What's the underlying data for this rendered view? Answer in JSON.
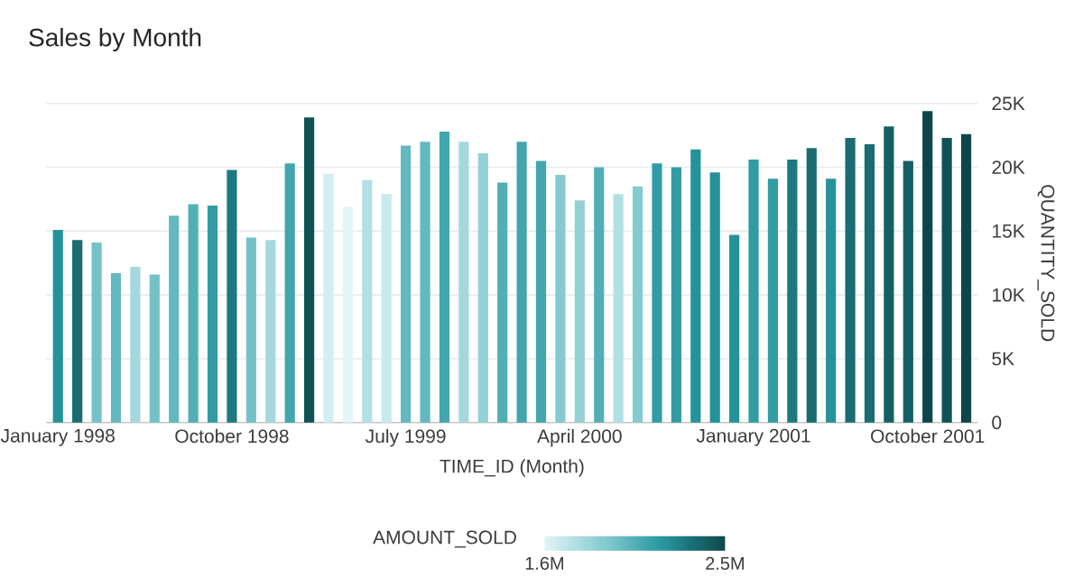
{
  "chart_data": {
    "type": "bar",
    "title": "Sales by Month",
    "xlabel": "TIME_ID (Month)",
    "ylabel": "QUANTITY_SOLD",
    "clabel": "AMOUNT_SOLD",
    "categories": [
      "January 1998",
      null,
      null,
      null,
      null,
      null,
      null,
      null,
      null,
      "October 1998",
      null,
      null,
      null,
      null,
      null,
      null,
      null,
      null,
      "July 1999",
      null,
      null,
      null,
      null,
      null,
      null,
      null,
      null,
      "April 2000",
      null,
      null,
      null,
      null,
      null,
      null,
      null,
      null,
      "January 2001",
      null,
      null,
      null,
      null,
      null,
      null,
      null,
      null,
      "October 2001",
      null,
      null
    ],
    "values": [
      15100,
      14300,
      14100,
      11700,
      12200,
      11600,
      16200,
      17100,
      17000,
      19800,
      14500,
      14300,
      20300,
      23900,
      19500,
      16900,
      19000,
      17900,
      21700,
      22000,
      22800,
      22000,
      21100,
      18800,
      22000,
      20500,
      19400,
      17400,
      20000,
      17900,
      18500,
      20300,
      20000,
      21400,
      19600,
      14700,
      20600,
      19100,
      20600,
      21500,
      19100,
      22300,
      21800,
      23200,
      20500,
      24400,
      22300,
      22600
    ],
    "cvalues": [
      2200000,
      2350000,
      1950000,
      2000000,
      1800000,
      1950000,
      2000000,
      2050000,
      2150000,
      2300000,
      1950000,
      1800000,
      2100000,
      2450000,
      1650000,
      1600000,
      1750000,
      1680000,
      2000000,
      2000000,
      2100000,
      1800000,
      1850000,
      2050000,
      2100000,
      2100000,
      1900000,
      1850000,
      2050000,
      1750000,
      1900000,
      2150000,
      2150000,
      2200000,
      2200000,
      2200000,
      2150000,
      2150000,
      2300000,
      2350000,
      2200000,
      2350000,
      2350000,
      2400000,
      2400000,
      2500000,
      2450000,
      2500000
    ],
    "clim": [
      1600000,
      2500000
    ],
    "cticks": [
      {
        "value": 1600000,
        "label": "1.6M"
      },
      {
        "value": 2500000,
        "label": "2.5M"
      }
    ],
    "ylim": [
      0,
      25000
    ],
    "yticks": [
      {
        "value": 0,
        "label": "0"
      },
      {
        "value": 5000,
        "label": "5K"
      },
      {
        "value": 10000,
        "label": "10K"
      },
      {
        "value": 15000,
        "label": "15K"
      },
      {
        "value": 20000,
        "label": "20K"
      },
      {
        "value": 25000,
        "label": "25K"
      }
    ],
    "grid": "y"
  }
}
